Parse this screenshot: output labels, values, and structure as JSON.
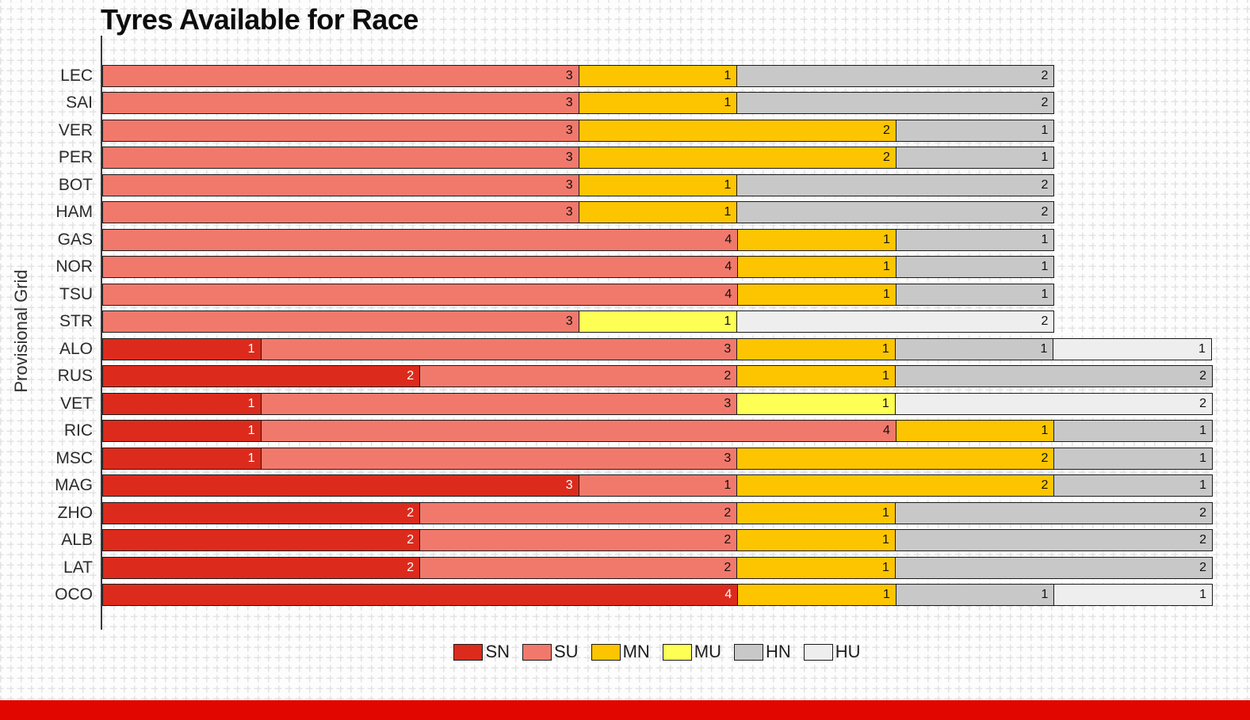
{
  "title": "Tyres Available for Race",
  "ylabel": "Provisional Grid",
  "colors": {
    "SN": "#dc2b1c",
    "SU": "#f1796c",
    "MN": "#fdc500",
    "MU": "#feff54",
    "HN": "#c8c8c8",
    "HU": "#eeeeee",
    "bar_edge": "#1a1a1a",
    "axis_spine": "#3a3a3a",
    "footer_red": "#e10600"
  },
  "chart_data": {
    "type": "bar",
    "orientation": "horizontal",
    "stacked": true,
    "title": "Tyres Available for Race",
    "xlabel": "",
    "ylabel": "Provisional Grid",
    "xlim": [
      0,
      7
    ],
    "grid": "light plus-mark graph-paper background",
    "value_labels": "count shown at right end of each segment",
    "legend_position": "bottom-center",
    "legend": [
      "SN",
      "SU",
      "MN",
      "MU",
      "HN",
      "HU"
    ],
    "categories": [
      "LEC",
      "SAI",
      "VER",
      "PER",
      "BOT",
      "HAM",
      "GAS",
      "NOR",
      "TSU",
      "STR",
      "ALO",
      "RUS",
      "VET",
      "RIC",
      "MSC",
      "MAG",
      "ZHO",
      "ALB",
      "LAT",
      "OCO"
    ],
    "series": [
      {
        "name": "SN",
        "label_color": "#ffffff",
        "values": [
          0,
          0,
          0,
          0,
          0,
          0,
          0,
          0,
          0,
          0,
          1,
          2,
          1,
          1,
          1,
          3,
          2,
          2,
          2,
          4
        ]
      },
      {
        "name": "SU",
        "label_color": "#111111",
        "values": [
          3,
          3,
          3,
          3,
          3,
          3,
          4,
          4,
          4,
          3,
          3,
          2,
          3,
          4,
          3,
          1,
          2,
          2,
          2,
          0
        ]
      },
      {
        "name": "MN",
        "label_color": "#111111",
        "values": [
          1,
          1,
          2,
          2,
          1,
          1,
          1,
          1,
          1,
          0,
          1,
          1,
          0,
          1,
          2,
          2,
          1,
          1,
          1,
          1
        ]
      },
      {
        "name": "MU",
        "label_color": "#111111",
        "values": [
          0,
          0,
          0,
          0,
          0,
          0,
          0,
          0,
          0,
          1,
          0,
          0,
          1,
          0,
          0,
          0,
          0,
          0,
          0,
          0
        ]
      },
      {
        "name": "HN",
        "label_color": "#111111",
        "values": [
          2,
          2,
          1,
          1,
          2,
          2,
          1,
          1,
          1,
          0,
          1,
          2,
          0,
          1,
          1,
          1,
          2,
          2,
          2,
          1
        ]
      },
      {
        "name": "HU",
        "label_color": "#111111",
        "values": [
          0,
          0,
          0,
          0,
          0,
          0,
          0,
          0,
          0,
          2,
          1,
          0,
          2,
          0,
          0,
          0,
          0,
          0,
          0,
          1
        ]
      }
    ],
    "totals_per_driver": [
      6,
      6,
      6,
      6,
      6,
      6,
      6,
      6,
      6,
      6,
      7,
      7,
      7,
      7,
      7,
      7,
      7,
      7,
      7,
      7
    ]
  }
}
